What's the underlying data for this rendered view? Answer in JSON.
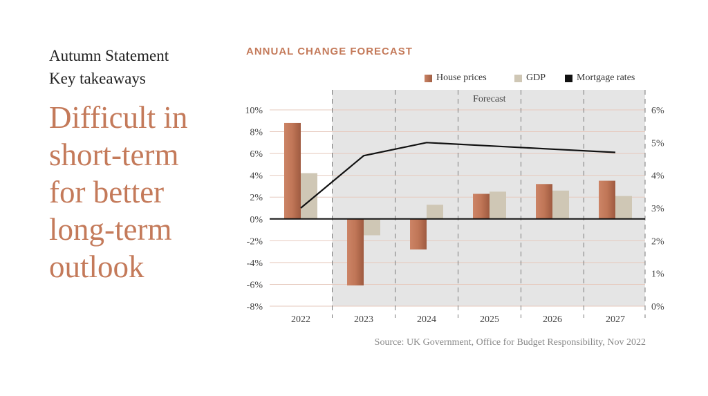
{
  "kicker": {
    "line1": "Autumn Statement",
    "line2": "Key takeaways"
  },
  "headline": [
    "Difficult in",
    "short-term",
    "for better",
    "long-term",
    "outlook"
  ],
  "source": "Source: UK Government, Office for Budget Responsibility, Nov 2022",
  "chart_data": {
    "type": "bar+line",
    "title": "ANNUAL CHANGE FORECAST",
    "categories": [
      "2022",
      "2023",
      "2024",
      "2025",
      "2026",
      "2027"
    ],
    "forecast_label": "Forecast",
    "forecast_start": "2023",
    "series": [
      {
        "name": "House prices",
        "type": "bar",
        "axis": "left",
        "color": "#c47a5a",
        "values": [
          8.8,
          -6.1,
          -2.8,
          2.3,
          3.2,
          3.5
        ]
      },
      {
        "name": "GDP",
        "type": "bar",
        "axis": "left",
        "color": "#cfc7b5",
        "values": [
          4.2,
          -1.5,
          1.3,
          2.5,
          2.6,
          2.1
        ]
      },
      {
        "name": "Mortgage rates",
        "type": "line",
        "axis": "right",
        "color": "#111111",
        "values": [
          3.0,
          4.6,
          5.0,
          4.9,
          4.8,
          4.7
        ]
      }
    ],
    "left_axis": {
      "ylim": [
        -8,
        10
      ],
      "ticks": [
        "10%",
        "8%",
        "6%",
        "4%",
        "2%",
        "0%",
        "-2%",
        "-4%",
        "-6%",
        "-8%"
      ]
    },
    "right_axis": {
      "ylim": [
        0,
        6
      ],
      "ticks": [
        "6%",
        "5%",
        "4%",
        "3%",
        "2%",
        "1%",
        "0%"
      ]
    },
    "grid": true,
    "legend_position": "top-right"
  }
}
